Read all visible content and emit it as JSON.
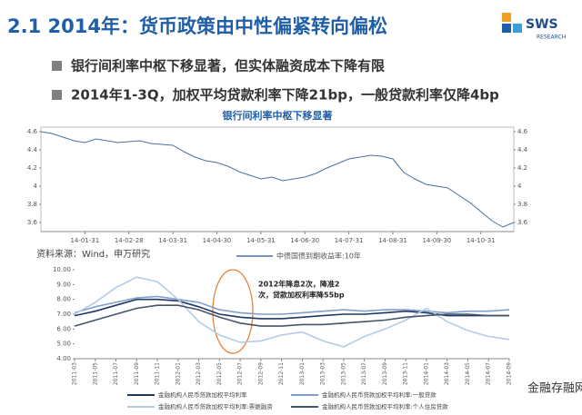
{
  "header": {
    "title": "2.1 2014年：货币政策由中性偏紧转向偏松",
    "logo": "SWS",
    "logo_sub": "RESEARCH"
  },
  "bullets": [
    "银行间利率中枢下移显著，但实体融资成本下降有限",
    "2014年1-3Q，加权平均贷款利率下降21bp，一般贷款利率仅降4bp"
  ],
  "source": "资料来源：Wind，申万研究",
  "watermark": "金融存融网",
  "chart_data": [
    {
      "type": "line",
      "title": "银行间利率中枢下移显著",
      "categories": [
        null,
        null,
        null,
        null,
        "14-01-31",
        null,
        null,
        null,
        "14-02-28",
        null,
        null,
        null,
        "14-03-31",
        null,
        null,
        null,
        "14-04-30",
        null,
        null,
        null,
        "14-05-31",
        null,
        null,
        null,
        "14-06-30",
        null,
        null,
        null,
        "14-07-31",
        null,
        null,
        null,
        "14-08-31",
        null,
        null,
        null,
        "14-09-30",
        null,
        null,
        null,
        "14-10-31",
        null,
        null,
        null
      ],
      "series": [
        {
          "name": "中债国债到期收益率:10年",
          "color": "#4a6fa5",
          "values": [
            4.6,
            4.58,
            4.54,
            4.5,
            4.48,
            4.52,
            4.5,
            4.48,
            4.49,
            4.5,
            4.47,
            4.46,
            4.45,
            4.38,
            4.32,
            4.28,
            4.26,
            4.22,
            4.16,
            4.12,
            4.08,
            4.1,
            4.06,
            4.08,
            4.1,
            4.14,
            4.2,
            4.25,
            4.3,
            4.32,
            4.34,
            4.33,
            4.3,
            4.15,
            4.08,
            4.02,
            4.0,
            3.98,
            3.9,
            3.82,
            3.72,
            3.62,
            3.55,
            3.6
          ]
        }
      ],
      "ylim": [
        3.5,
        4.65
      ],
      "yticks": [
        3.6,
        3.8,
        4.0,
        4.2,
        4.4,
        4.6
      ],
      "grid": false
    },
    {
      "type": "line",
      "categories": [
        "2011-03",
        "2011-05",
        "2011-07",
        "2011-09",
        "2011-11",
        "2012-01",
        "2012-03",
        "2012-05",
        "2012-07",
        "2012-09",
        "2012-11",
        "2013-01",
        "2013-03",
        "2013-05",
        "2013-07",
        "2013-09",
        "2013-11",
        "2014-01",
        "2014-03",
        "2014-05",
        "2014-07",
        "2014-09"
      ],
      "series": [
        {
          "name": "金融机构人民币贷款加权平均利率",
          "color": "#1f3864",
          "values": [
            6.9,
            7.2,
            7.6,
            8.0,
            8.0,
            7.9,
            7.5,
            7.0,
            6.8,
            6.7,
            6.7,
            6.8,
            6.9,
            7.0,
            7.0,
            7.1,
            7.2,
            7.1,
            6.9,
            6.9,
            6.9,
            6.9
          ]
        },
        {
          "name": "金融机构人民币贷款加权平均利率:一般贷款",
          "color": "#7f9fcc",
          "values": [
            7.1,
            7.5,
            7.8,
            8.1,
            8.2,
            8.0,
            7.8,
            7.3,
            7.1,
            7.0,
            7.0,
            7.1,
            7.2,
            7.3,
            7.2,
            7.3,
            7.3,
            7.2,
            7.1,
            7.2,
            7.2,
            7.3
          ]
        },
        {
          "name": "金融机构人民币贷款加权平均利率:票据融资",
          "color": "#b4cbe8",
          "values": [
            7.0,
            7.8,
            8.8,
            9.5,
            9.2,
            8.0,
            6.5,
            5.6,
            5.1,
            5.2,
            5.6,
            5.8,
            5.2,
            4.8,
            5.5,
            6.0,
            6.6,
            7.4,
            6.5,
            5.9,
            5.5,
            5.3
          ]
        },
        {
          "name": "金融机构人民币贷款加权平均利率:个人住房贷款",
          "color": "#44546a",
          "values": [
            6.2,
            6.6,
            7.0,
            7.4,
            7.6,
            7.6,
            7.3,
            6.8,
            6.4,
            6.2,
            6.2,
            6.3,
            6.3,
            6.4,
            6.5,
            6.6,
            6.8,
            6.9,
            7.0,
            7.0,
            6.9,
            6.9
          ]
        }
      ],
      "ylim": [
        4,
        10
      ],
      "yticks": [
        {
          "value": 4,
          "label": "4.00"
        },
        {
          "value": 5,
          "label": "5.00"
        },
        {
          "value": 6,
          "label": "6.00"
        },
        {
          "value": 7,
          "label": "7.00"
        },
        {
          "value": 8,
          "label": "8.00"
        },
        {
          "value": 9,
          "label": "9.00"
        },
        {
          "value": 10,
          "label": "10.00"
        }
      ],
      "annotation": [
        "2012年降息2次，降准2",
        "次，贷款加权利率降55bp"
      ],
      "grid": false
    }
  ]
}
